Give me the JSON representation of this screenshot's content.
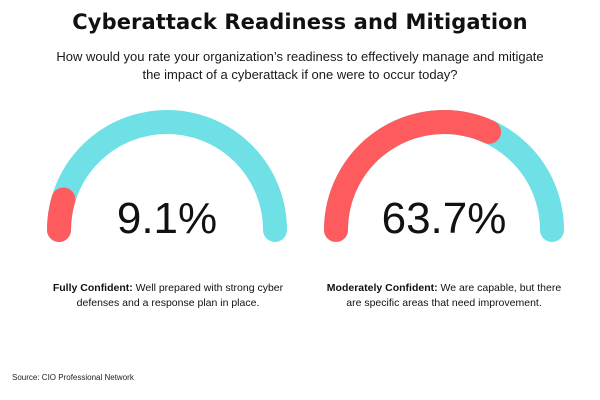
{
  "title": "Cyberattack Readiness and Mitigation",
  "subtitle": "How would you rate your organization’s readiness to effectively manage and mitigate the impact of a cyberattack if one were to occur today?",
  "chart_data": [
    {
      "type": "gauge",
      "value": 9.1,
      "value_label": "9.1%",
      "max": 100,
      "category": "Fully Confident:",
      "description": " Well prepared with strong cyber defenses and a response plan in place."
    },
    {
      "type": "gauge",
      "value": 63.7,
      "value_label": "63.7%",
      "max": 100,
      "category": "Moderately Confident:",
      "description": " We are capable, but there are specific areas that need improvement."
    }
  ],
  "colors": {
    "track": "#6ee0e6",
    "fill": "#fd5b5e"
  },
  "source": "Source: CIO Professional Network"
}
